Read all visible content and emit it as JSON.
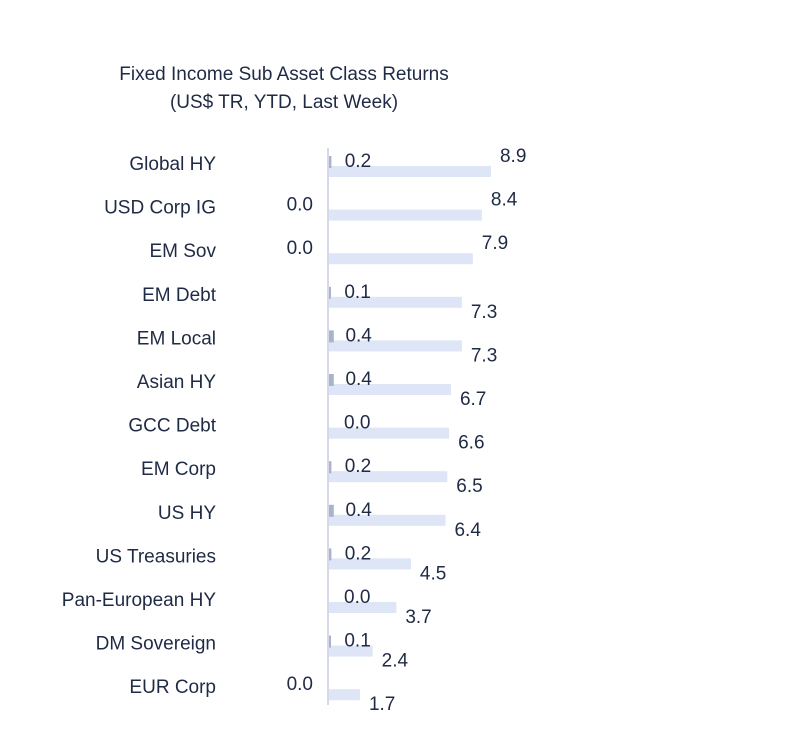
{
  "chart_data": {
    "type": "bar",
    "title": "Fixed Income Sub Asset Class Returns",
    "subtitle": "(US$ TR, YTD, Last Week)",
    "categories": [
      "Global HY",
      "USD Corp IG",
      "EM Sov",
      "EM Debt",
      "EM Local",
      "Asian HY",
      "GCC Debt",
      "EM Corp",
      "US HY",
      "US Treasuries",
      "Pan-European HY",
      "DM Sovereign",
      "EUR Corp"
    ],
    "series": [
      {
        "name": "YTD",
        "values": [
          8.9,
          8.4,
          7.9,
          7.3,
          7.3,
          6.7,
          6.6,
          6.5,
          6.4,
          4.5,
          3.7,
          2.4,
          1.7
        ],
        "labels": [
          "8.9",
          "8.4",
          "7.9",
          "7.3",
          "7.3",
          "6.7",
          "6.6",
          "6.5",
          "6.4",
          "4.5",
          "3.7",
          "2.4",
          "1.7"
        ]
      },
      {
        "name": "Last Week",
        "values": [
          0.2,
          0.0,
          0.0,
          0.1,
          0.4,
          0.4,
          0.0,
          0.2,
          0.4,
          0.2,
          0.0,
          0.1,
          0.0
        ],
        "labels": [
          "0.2",
          "0.0",
          "0.0",
          "0.1",
          "0.4",
          "0.4",
          "0.0",
          "0.2",
          "0.4",
          "0.2",
          "0.0",
          "0.1",
          "0.0"
        ]
      }
    ],
    "colors": {
      "ytd": "#dde5f6",
      "week": "#aab3cb",
      "axis": "#c5cce0",
      "text": "#1f2a44"
    },
    "legend": "none",
    "grid": false
  }
}
